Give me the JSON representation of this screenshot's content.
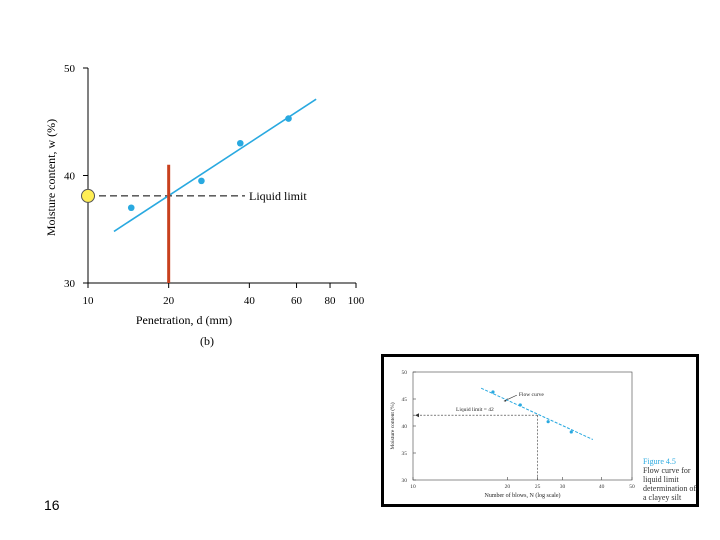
{
  "slide_number": "16",
  "colors": {
    "data": "#29a9e0",
    "marker": "#c8401e",
    "highlight_fill": "#ffee55",
    "axis": "#000000"
  },
  "chart_data": [
    {
      "id": "main",
      "type": "scatter",
      "subtitle": "(b)",
      "xlabel": "Penetration, d (mm)",
      "ylabel": "Moisture content, w (%)",
      "xscale": "log",
      "xlim": [
        10,
        100
      ],
      "ylim": [
        30,
        50
      ],
      "x_ticks": [
        10,
        20,
        40,
        60,
        80,
        100
      ],
      "y_ticks": [
        30,
        40,
        50
      ],
      "points": [
        {
          "x": 14.5,
          "y": 37.0
        },
        {
          "x": 26.5,
          "y": 39.5
        },
        {
          "x": 37,
          "y": 43.0
        },
        {
          "x": 56,
          "y": 45.3
        }
      ],
      "fit_line": {
        "x": [
          12.5,
          71
        ],
        "y": [
          34.8,
          47.1
        ]
      },
      "annotations": [
        {
          "text": "Liquid limit",
          "x": 20,
          "y": 38.1,
          "style": "dashed-horizontal"
        }
      ],
      "marker_line": {
        "x": 20,
        "y": [
          30,
          41
        ]
      },
      "highlight_point": {
        "x": 10,
        "y": 38.1
      }
    },
    {
      "id": "inset",
      "type": "scatter",
      "xlabel": "Number of blows, N (log scale)",
      "ylabel": "Moisture content (%)",
      "xscale": "log",
      "xlim": [
        10,
        50
      ],
      "ylim": [
        30,
        50
      ],
      "x_ticks": [
        10,
        20,
        25,
        30,
        40,
        50
      ],
      "y_ticks": [
        30,
        35,
        40,
        45,
        50
      ],
      "points": [
        {
          "x": 18,
          "y": 46.3
        },
        {
          "x": 22,
          "y": 43.9
        },
        {
          "x": 27,
          "y": 40.8
        },
        {
          "x": 32,
          "y": 38.9
        }
      ],
      "fit_line": {
        "x": [
          16.5,
          37.5
        ],
        "y": [
          47.0,
          37.5
        ]
      },
      "annotations": [
        {
          "text": "Flow curve",
          "x": 19.5,
          "y": 44.6
        },
        {
          "text": "Liquid limit = 42",
          "x": 25,
          "y": 42
        }
      ],
      "figure_caption": {
        "title": "Figure 4.5",
        "lines": [
          "Flow curve for",
          "liquid limit",
          "determination of",
          "a clayey silt"
        ]
      }
    }
  ]
}
